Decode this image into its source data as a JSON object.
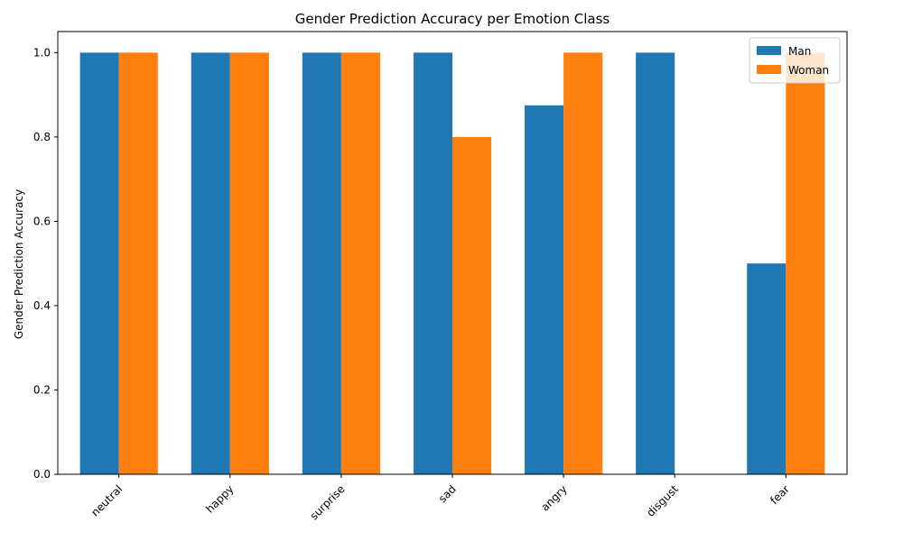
{
  "chart_data": {
    "type": "bar",
    "title": "Gender Prediction Accuracy per Emotion Class",
    "xlabel": "",
    "ylabel": "Gender Prediction Accuracy",
    "categories": [
      "neutral",
      "happy",
      "surprise",
      "sad",
      "angry",
      "disgust",
      "fear"
    ],
    "series": [
      {
        "name": "Man",
        "color": "#1f77b4",
        "values": [
          1.0,
          1.0,
          1.0,
          1.0,
          0.875,
          1.0,
          0.5
        ]
      },
      {
        "name": "Woman",
        "color": "#ff7f0e",
        "values": [
          1.0,
          1.0,
          1.0,
          0.8,
          1.0,
          0.0,
          1.0
        ]
      }
    ],
    "ylim": [
      0,
      1.05
    ],
    "yticks": [
      0.0,
      0.2,
      0.4,
      0.6,
      0.8,
      1.0
    ],
    "ytick_labels": [
      "0.0",
      "0.2",
      "0.4",
      "0.6",
      "0.8",
      "1.0"
    ],
    "grid": false,
    "legend": "top-right"
  }
}
